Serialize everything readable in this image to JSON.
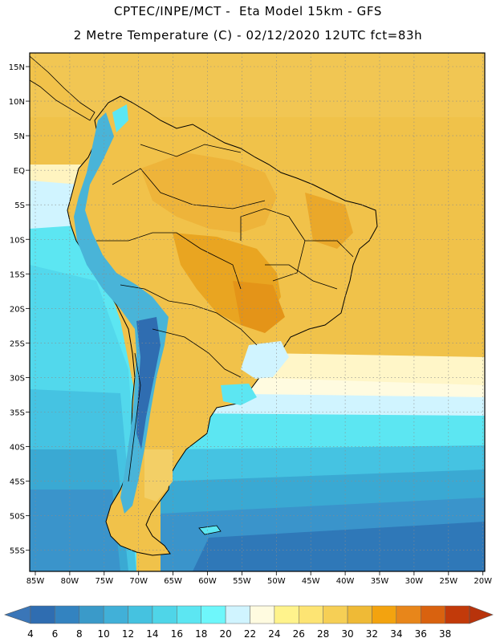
{
  "header": {
    "title_line1": "CPTEC/INPE/MCT -  Eta Model 15km - GFS",
    "title_line2": "2 Metre Temperature (C) - 02/12/2020 12UTC fct=83h"
  },
  "map": {
    "lat_labels": [
      "15N",
      "10N",
      "5N",
      "EQ",
      "5S",
      "10S",
      "15S",
      "20S",
      "25S",
      "30S",
      "35S",
      "40S",
      "45S",
      "50S",
      "55S"
    ],
    "lon_labels": [
      "85W",
      "80W",
      "75W",
      "70W",
      "65W",
      "60W",
      "55W",
      "50W",
      "45W",
      "40W",
      "35W",
      "30W",
      "25W",
      "20W"
    ],
    "colors": {
      "ocean_tropical": "#f0c24a",
      "land_warm": "#f1c24a",
      "land_hot": "#e9a521",
      "ocean_cool_1": "#ffffd9",
      "ocean_cool_2": "#d0f4ff",
      "ocean_cold_1": "#5ce6f2",
      "ocean_cold_2": "#41c8e3",
      "ocean_cold_3": "#3aa9d3",
      "ocean_cold_4": "#3383c0",
      "andes": "#49b4d8",
      "border": "#000000",
      "grid": "#8a8a8a"
    }
  },
  "colorbar": {
    "ticks": [
      "4",
      "6",
      "8",
      "10",
      "12",
      "14",
      "16",
      "18",
      "20",
      "22",
      "24",
      "26",
      "28",
      "30",
      "32",
      "34",
      "36",
      "38"
    ],
    "colors": [
      "#2f6db1",
      "#3383c0",
      "#3a9ac9",
      "#41b0d8",
      "#45c2e0",
      "#4fd5e8",
      "#5ce6f2",
      "#6ef7fb",
      "#d0f4ff",
      "#fffbe0",
      "#fff38c",
      "#fde473",
      "#f6cf55",
      "#efba36",
      "#f3a30f",
      "#e8861a",
      "#d9620f",
      "#c23a0a"
    ],
    "lower_color": "#3a76b8",
    "upper_color": "#b8330b"
  }
}
